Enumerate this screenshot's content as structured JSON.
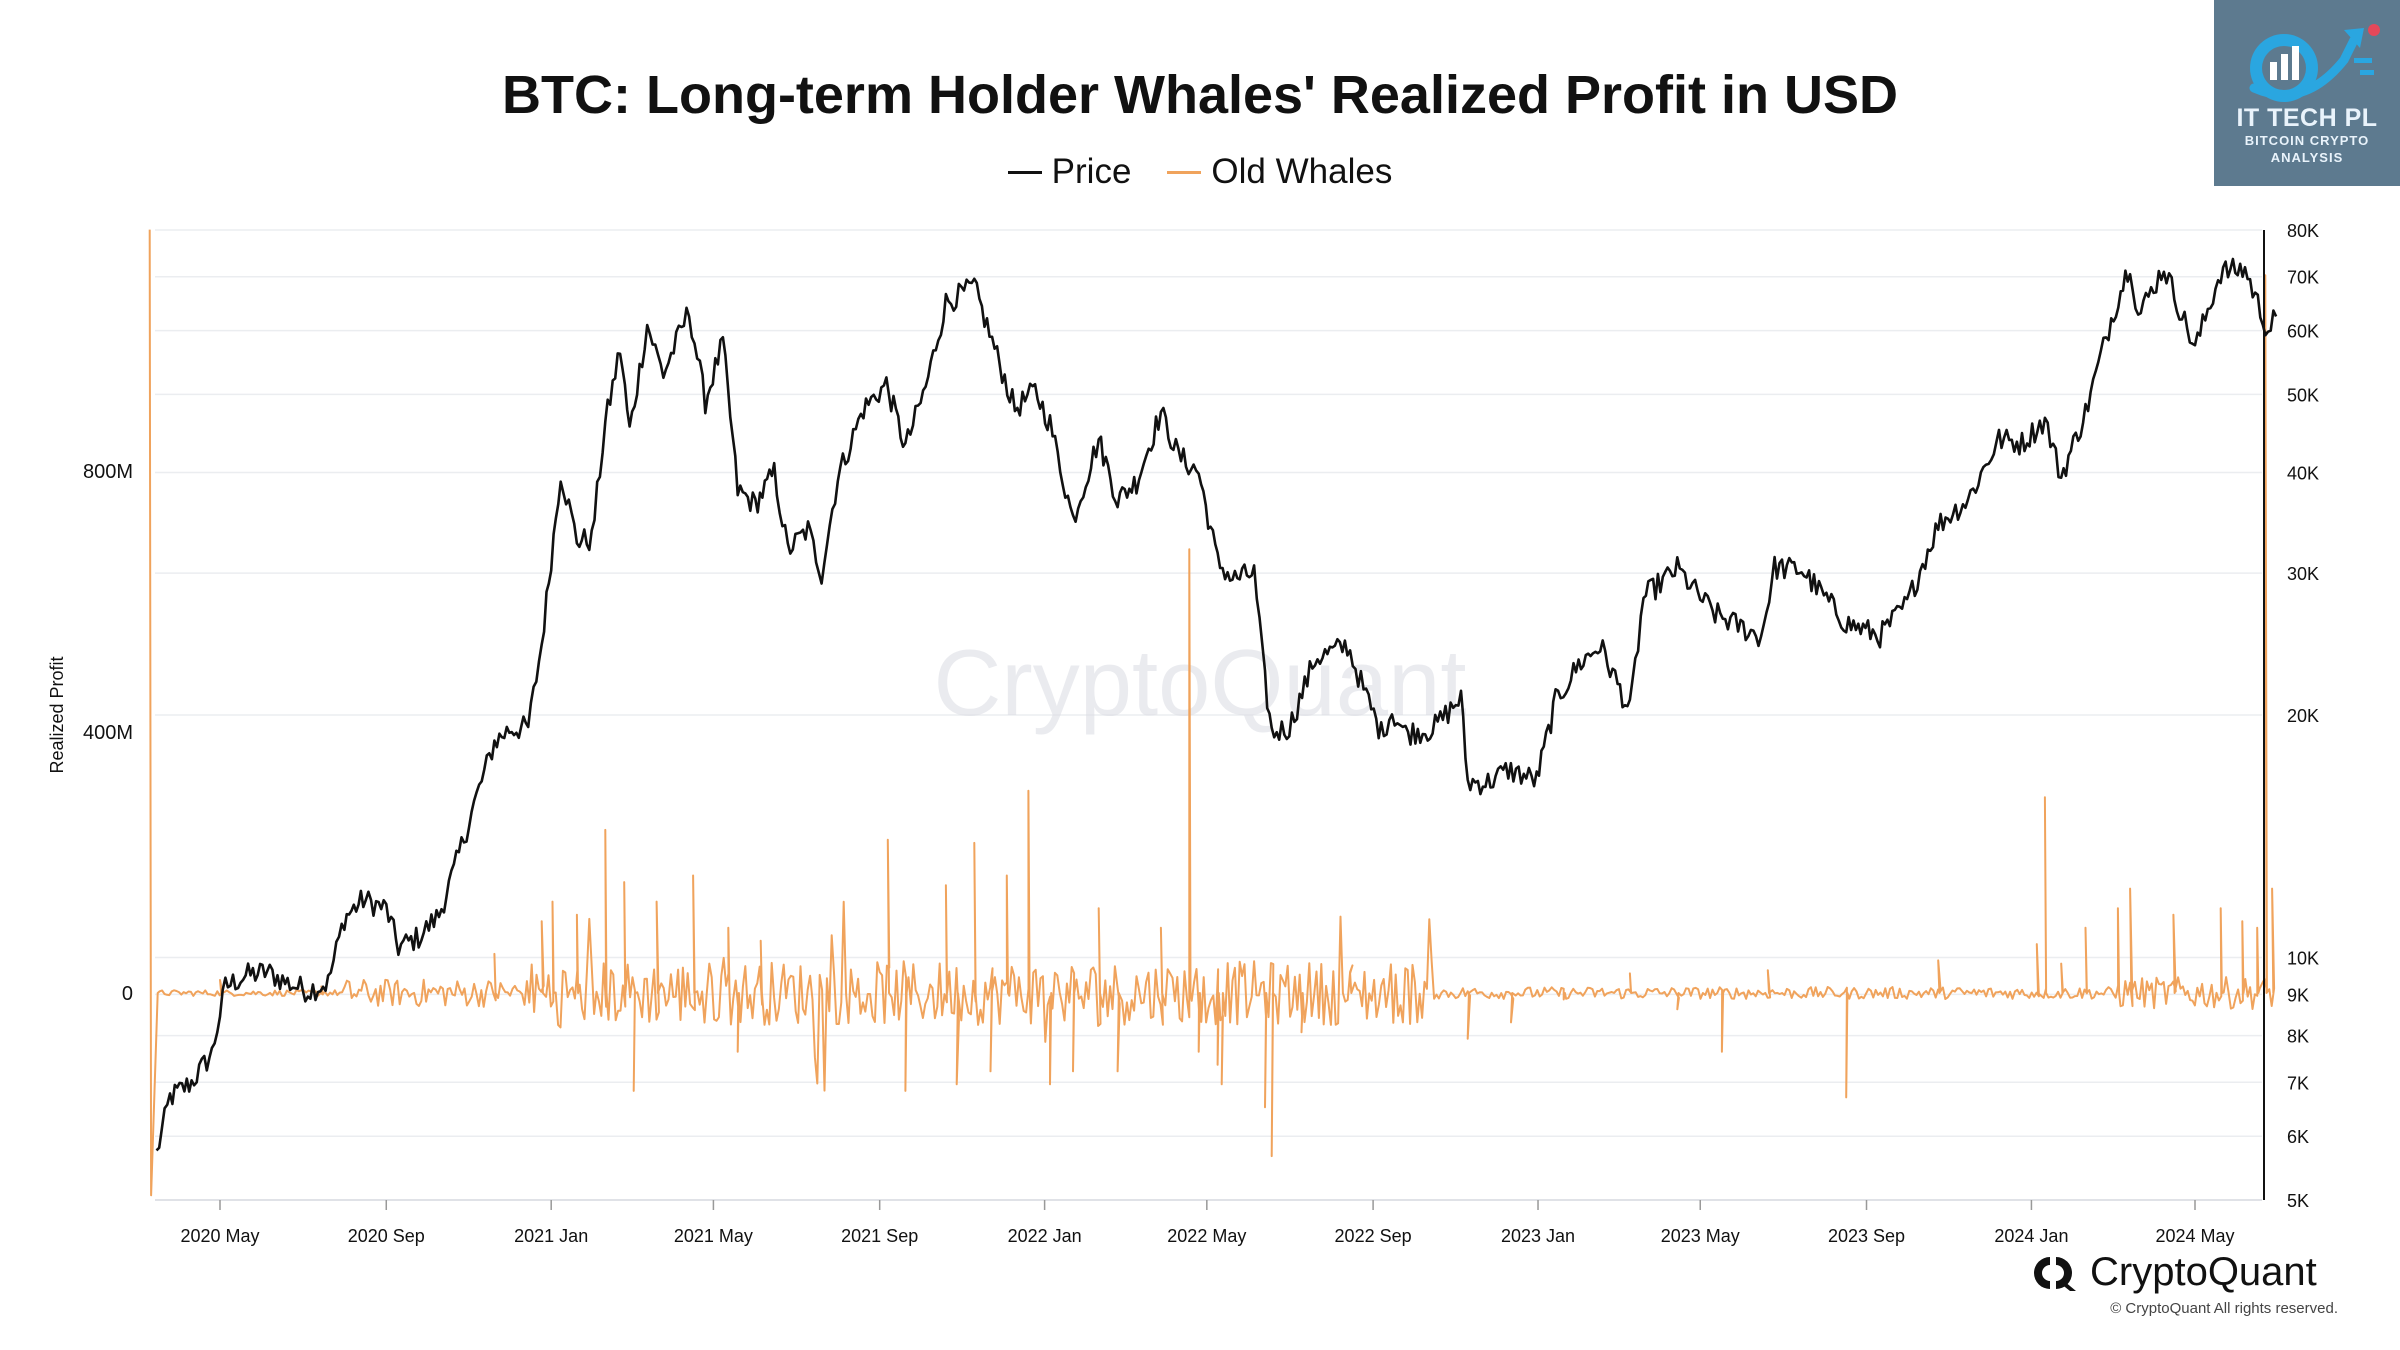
{
  "chart_data": {
    "type": "line",
    "title": "BTC: Long-term Holder Whales' Realized Profit in USD",
    "ylabel": "Realized Profit",
    "legend_position": "top-center",
    "grid": true,
    "watermark": "CryptoQuant",
    "x_ticks": [
      "2020 May",
      "2020 Sep",
      "2021 Jan",
      "2021 May",
      "2021 Sep",
      "2022 Jan",
      "2022 May",
      "2022 Sep",
      "2023 Jan",
      "2023 May",
      "2023 Sep",
      "2024 Jan",
      "2024 May"
    ],
    "y_left_ticks": [
      "0",
      "400M",
      "800M"
    ],
    "y_right_ticks": [
      "5K",
      "6K",
      "7K",
      "8K",
      "9K",
      "10K",
      "20K",
      "30K",
      "40K",
      "50K",
      "60K",
      "70K",
      "80K"
    ],
    "y_left_range": [
      -310000000,
      1170000000
    ],
    "y_right_range": [
      5000,
      80000
    ],
    "y_right_scale": "log",
    "series": [
      {
        "name": "Price",
        "color": "#111111",
        "axis": "right",
        "points": [
          [
            "2020-03-15",
            5700
          ],
          [
            "2020-03-25",
            6700
          ],
          [
            "2020-04-10",
            7000
          ],
          [
            "2020-04-25",
            7600
          ],
          [
            "2020-05-05",
            9200
          ],
          [
            "2020-05-20",
            9500
          ],
          [
            "2020-06-05",
            9600
          ],
          [
            "2020-06-20",
            9300
          ],
          [
            "2020-07-05",
            9100
          ],
          [
            "2020-07-20",
            9300
          ],
          [
            "2020-08-01",
            11200
          ],
          [
            "2020-08-15",
            11800
          ],
          [
            "2020-09-01",
            11500
          ],
          [
            "2020-09-10",
            10300
          ],
          [
            "2020-09-25",
            10600
          ],
          [
            "2020-10-10",
            11300
          ],
          [
            "2020-10-21",
            12800
          ],
          [
            "2020-11-05",
            15500
          ],
          [
            "2020-11-20",
            18500
          ],
          [
            "2020-12-01",
            19200
          ],
          [
            "2020-12-15",
            19300
          ],
          [
            "2020-12-25",
            24500
          ],
          [
            "2021-01-08",
            40000
          ],
          [
            "2021-01-20",
            33000
          ],
          [
            "2021-01-31",
            33000
          ],
          [
            "2021-02-10",
            46000
          ],
          [
            "2021-02-21",
            57000
          ],
          [
            "2021-02-28",
            45000
          ],
          [
            "2021-03-13",
            61000
          ],
          [
            "2021-03-25",
            53000
          ],
          [
            "2021-04-13",
            63500
          ],
          [
            "2021-04-25",
            49000
          ],
          [
            "2021-05-08",
            58000
          ],
          [
            "2021-05-19",
            38000
          ],
          [
            "2021-06-01",
            36500
          ],
          [
            "2021-06-15",
            40000
          ],
          [
            "2021-06-25",
            32000
          ],
          [
            "2021-07-10",
            34000
          ],
          [
            "2021-07-20",
            30000
          ],
          [
            "2021-08-01",
            39500
          ],
          [
            "2021-08-20",
            48000
          ],
          [
            "2021-09-06",
            51500
          ],
          [
            "2021-09-20",
            43000
          ],
          [
            "2021-10-05",
            51000
          ],
          [
            "2021-10-20",
            65000
          ],
          [
            "2021-11-10",
            68000
          ],
          [
            "2021-11-25",
            57000
          ],
          [
            "2021-12-10",
            48000
          ],
          [
            "2021-12-25",
            50500
          ],
          [
            "2022-01-05",
            46000
          ],
          [
            "2022-01-22",
            35000
          ],
          [
            "2022-02-10",
            44000
          ],
          [
            "2022-02-24",
            37000
          ],
          [
            "2022-03-10",
            39000
          ],
          [
            "2022-03-28",
            47500
          ],
          [
            "2022-04-10",
            42000
          ],
          [
            "2022-04-25",
            40000
          ],
          [
            "2022-05-09",
            31000
          ],
          [
            "2022-05-20",
            29500
          ],
          [
            "2022-06-05",
            30000
          ],
          [
            "2022-06-13",
            22000
          ],
          [
            "2022-06-18",
            19000
          ],
          [
            "2022-07-01",
            19300
          ],
          [
            "2022-07-20",
            23500
          ],
          [
            "2022-08-13",
            24400
          ],
          [
            "2022-08-25",
            21500
          ],
          [
            "2022-09-07",
            19000
          ],
          [
            "2022-09-15",
            20200
          ],
          [
            "2022-09-25",
            19000
          ],
          [
            "2022-10-15",
            19200
          ],
          [
            "2022-11-05",
            21000
          ],
          [
            "2022-11-10",
            16500
          ],
          [
            "2022-11-25",
            16500
          ],
          [
            "2022-12-10",
            17100
          ],
          [
            "2022-12-31",
            16600
          ],
          [
            "2023-01-14",
            20800
          ],
          [
            "2023-01-31",
            23100
          ],
          [
            "2023-02-16",
            24400
          ],
          [
            "2023-03-10",
            20200
          ],
          [
            "2023-03-20",
            28000
          ],
          [
            "2023-04-14",
            30400
          ],
          [
            "2023-05-01",
            28000
          ],
          [
            "2023-05-12",
            26700
          ],
          [
            "2023-06-15",
            25000
          ],
          [
            "2023-06-25",
            30500
          ],
          [
            "2023-07-15",
            30300
          ],
          [
            "2023-08-17",
            26000
          ],
          [
            "2023-09-11",
            25100
          ],
          [
            "2023-10-01",
            27500
          ],
          [
            "2023-10-24",
            34500
          ],
          [
            "2023-11-15",
            37000
          ],
          [
            "2023-12-08",
            44000
          ],
          [
            "2023-12-25",
            43500
          ],
          [
            "2024-01-11",
            46500
          ],
          [
            "2024-01-23",
            39500
          ],
          [
            "2024-02-10",
            47500
          ],
          [
            "2024-02-29",
            62000
          ],
          [
            "2024-03-14",
            73000
          ],
          [
            "2024-03-20",
            62500
          ],
          [
            "2024-04-08",
            72000
          ],
          [
            "2024-05-01",
            57000
          ],
          [
            "2024-05-20",
            71000
          ],
          [
            "2024-06-07",
            71500
          ],
          [
            "2024-06-24",
            60000
          ],
          [
            "2024-06-30",
            62500
          ]
        ]
      },
      {
        "name": "Old Whales",
        "color": "#f0a35c",
        "axis": "left",
        "baseline_noise_until": "2022-10-15",
        "points": [
          [
            "2020-03-10",
            1170000000
          ],
          [
            "2020-03-11",
            -310000000
          ],
          [
            "2020-05-01",
            20000000
          ],
          [
            "2020-07-15",
            10000000
          ],
          [
            "2020-11-20",
            60000000
          ],
          [
            "2020-12-25",
            110000000
          ],
          [
            "2021-01-02",
            140000000
          ],
          [
            "2021-01-20",
            120000000
          ],
          [
            "2021-02-10",
            250000000
          ],
          [
            "2021-02-24",
            170000000
          ],
          [
            "2021-03-03",
            -150000000
          ],
          [
            "2021-03-20",
            140000000
          ],
          [
            "2021-04-16",
            180000000
          ],
          [
            "2021-05-12",
            100000000
          ],
          [
            "2021-05-19",
            -90000000
          ],
          [
            "2021-06-05",
            80000000
          ],
          [
            "2021-09-07",
            235000000
          ],
          [
            "2021-09-20",
            -150000000
          ],
          [
            "2021-10-20",
            165000000
          ],
          [
            "2021-10-28",
            -140000000
          ],
          [
            "2021-11-10",
            230000000
          ],
          [
            "2021-11-22",
            -120000000
          ],
          [
            "2021-12-04",
            180000000
          ],
          [
            "2021-12-20",
            310000000
          ],
          [
            "2022-01-05",
            -140000000
          ],
          [
            "2022-01-22",
            -120000000
          ],
          [
            "2022-02-10",
            130000000
          ],
          [
            "2022-02-24",
            -120000000
          ],
          [
            "2022-03-28",
            100000000
          ],
          [
            "2022-04-18",
            680000000
          ],
          [
            "2022-04-25",
            -90000000
          ],
          [
            "2022-05-09",
            -110000000
          ],
          [
            "2022-05-12",
            -140000000
          ],
          [
            "2022-06-13",
            -175000000
          ],
          [
            "2022-06-18",
            -250000000
          ],
          [
            "2022-07-10",
            -60000000
          ],
          [
            "2022-08-15",
            30000000
          ],
          [
            "2022-11-10",
            -70000000
          ],
          [
            "2022-12-12",
            -45000000
          ],
          [
            "2023-01-20",
            -10000000
          ],
          [
            "2023-03-10",
            30000000
          ],
          [
            "2023-04-14",
            -25000000
          ],
          [
            "2023-05-17",
            -90000000
          ],
          [
            "2023-06-20",
            35000000
          ],
          [
            "2023-08-17",
            -160000000
          ],
          [
            "2023-10-24",
            50000000
          ],
          [
            "2024-01-05",
            75000000
          ],
          [
            "2024-01-11",
            300000000
          ],
          [
            "2024-01-23",
            45000000
          ],
          [
            "2024-02-10",
            100000000
          ],
          [
            "2024-03-05",
            130000000
          ],
          [
            "2024-03-14",
            160000000
          ],
          [
            "2024-04-15",
            120000000
          ],
          [
            "2024-05-20",
            130000000
          ],
          [
            "2024-06-05",
            110000000
          ],
          [
            "2024-06-16",
            100000000
          ],
          [
            "2024-06-22",
            1100000000
          ],
          [
            "2024-06-27",
            160000000
          ]
        ]
      }
    ]
  },
  "badge": {
    "title": "IT TECH PL",
    "subtitle": "BITCOIN CRYPTO\nANALYSIS",
    "icon": "chart-growth-icon"
  },
  "footer": {
    "brand": "CryptoQuant",
    "copyright": "© CryptoQuant All rights reserved."
  }
}
